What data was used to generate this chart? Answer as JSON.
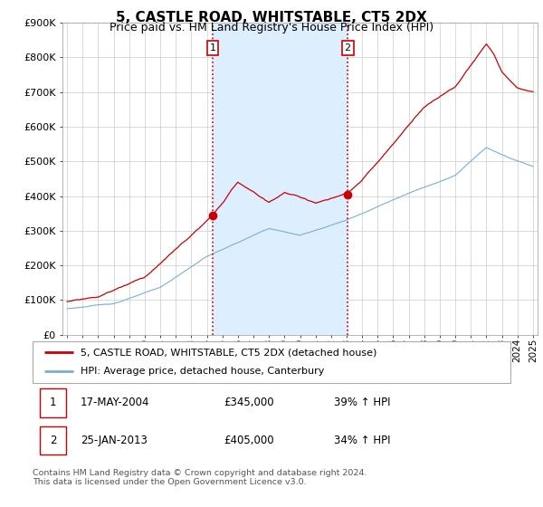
{
  "title": "5, CASTLE ROAD, WHITSTABLE, CT5 2DX",
  "subtitle": "Price paid vs. HM Land Registry's House Price Index (HPI)",
  "ylim": [
    0,
    900000
  ],
  "yticks": [
    0,
    100000,
    200000,
    300000,
    400000,
    500000,
    600000,
    700000,
    800000,
    900000
  ],
  "xlim_start": 1994.7,
  "xlim_end": 2025.3,
  "sale1_x": 2004.38,
  "sale1_y": 345000,
  "sale2_x": 2013.07,
  "sale2_y": 405000,
  "sale1_label": "1",
  "sale2_label": "2",
  "red_line_color": "#cc0000",
  "blue_line_color": "#7aaed6",
  "shade_color": "#ddeeff",
  "vline_color": "#cc0000",
  "grid_color": "#cccccc",
  "background_color": "#ffffff",
  "legend_red_label": "5, CASTLE ROAD, WHITSTABLE, CT5 2DX (detached house)",
  "legend_blue_label": "HPI: Average price, detached house, Canterbury",
  "table_row1": [
    "1",
    "17-MAY-2004",
    "£345,000",
    "39% ↑ HPI"
  ],
  "table_row2": [
    "2",
    "25-JAN-2013",
    "£405,000",
    "34% ↑ HPI"
  ],
  "footer": "Contains HM Land Registry data © Crown copyright and database right 2024.\nThis data is licensed under the Open Government Licence v3.0.",
  "title_fontsize": 11,
  "subtitle_fontsize": 9,
  "tick_fontsize": 8,
  "legend_fontsize": 8,
  "table_fontsize": 8.5
}
